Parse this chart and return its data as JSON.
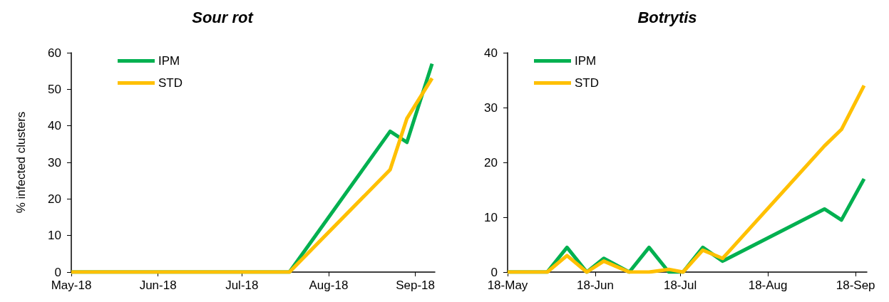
{
  "chart_data": [
    {
      "type": "line",
      "title": "Sour rot",
      "ylabel": "% infected clusters",
      "legend": "top left",
      "grid": false,
      "xlim": [
        "2018-05-01",
        "2018-09-08"
      ],
      "xticks": [
        {
          "value": "2018-05-01",
          "label": "May-18"
        },
        {
          "value": "2018-06-01",
          "label": "Jun-18"
        },
        {
          "value": "2018-07-01",
          "label": "Jul-18"
        },
        {
          "value": "2018-08-01",
          "label": "Aug-18"
        },
        {
          "value": "2018-09-01",
          "label": "Sep-18"
        }
      ],
      "ylim": [
        0,
        60
      ],
      "yticks": [
        0,
        10,
        20,
        30,
        40,
        50,
        60
      ],
      "series": [
        {
          "name": "IPM",
          "color": "#00b050",
          "x": [
            "2018-05-01",
            "2018-07-18",
            "2018-08-23",
            "2018-08-29",
            "2018-09-07"
          ],
          "values": [
            0,
            0,
            38.5,
            35.5,
            57
          ]
        },
        {
          "name": "STD",
          "color": "#ffc000",
          "x": [
            "2018-05-01",
            "2018-07-18",
            "2018-08-23",
            "2018-08-29",
            "2018-09-07"
          ],
          "values": [
            0,
            0,
            28,
            42,
            53
          ]
        }
      ]
    },
    {
      "type": "line",
      "title": "Botrytis",
      "legend": "top left",
      "grid": false,
      "xlim": [
        "--05-18",
        "--09-22"
      ],
      "xticks": [
        {
          "value": "--05-18",
          "label": "18-May"
        },
        {
          "value": "--06-18",
          "label": "18-Jun"
        },
        {
          "value": "--07-18",
          "label": "18-Jul"
        },
        {
          "value": "--08-18",
          "label": "18-Aug"
        },
        {
          "value": "--09-18",
          "label": "18-Sep"
        }
      ],
      "ylim": [
        0,
        40
      ],
      "yticks": [
        0,
        10,
        20,
        30,
        40
      ],
      "series": [
        {
          "name": "IPM",
          "color": "#00b050",
          "x": [
            "--05-18",
            "--06-01",
            "--06-08",
            "--06-15",
            "--06-21",
            "--06-30",
            "--07-07",
            "--07-14",
            "--07-19",
            "--07-26",
            "--08-02",
            "--09-07",
            "--09-13",
            "--09-21"
          ],
          "values": [
            0,
            0,
            4.5,
            0,
            2.5,
            0,
            4.5,
            0,
            0,
            4.5,
            2,
            11.5,
            9.5,
            17
          ]
        },
        {
          "name": "STD",
          "color": "#ffc000",
          "x": [
            "--05-18",
            "--06-01",
            "--06-08",
            "--06-15",
            "--06-21",
            "--06-30",
            "--07-07",
            "--07-14",
            "--07-19",
            "--07-26",
            "--08-02",
            "--09-07",
            "--09-13",
            "--09-21"
          ],
          "values": [
            0,
            0,
            3,
            0,
            2,
            0,
            0,
            0.5,
            0,
            4,
            2.5,
            23,
            26,
            34
          ]
        }
      ]
    }
  ]
}
